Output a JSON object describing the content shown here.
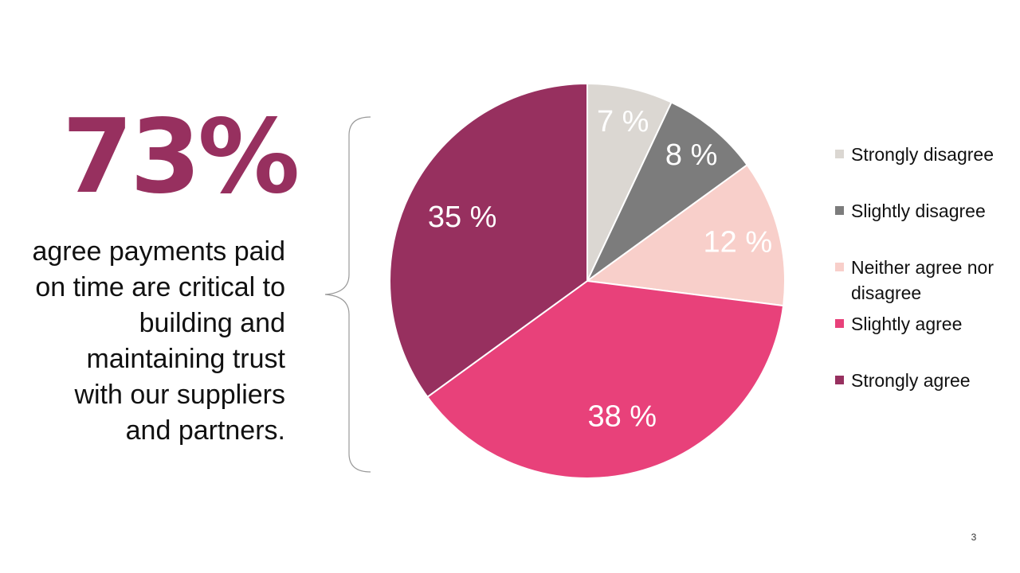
{
  "headline": {
    "stat": "73%",
    "text": "agree payments paid on time are critical to building and maintaining trust with our suppliers and partners."
  },
  "chart_data": {
    "type": "pie",
    "start_angle_deg": 0,
    "direction": "clockwise",
    "categories": [
      "Strongly disagree",
      "Slightly disagree",
      "Neither agree nor disagree",
      "Slightly agree",
      "Strongly agree"
    ],
    "values": [
      7,
      8,
      12,
      38,
      35
    ],
    "value_labels": [
      "7 %",
      "8 %",
      "12 %",
      "38 %",
      "35 %"
    ],
    "colors": [
      "#dbd7d2",
      "#7c7c7c",
      "#f8cfca",
      "#e8417a",
      "#97305f"
    ],
    "legend_position": "right"
  },
  "legend": {
    "items": [
      {
        "label": "Strongly disagree",
        "color": "#dbd7d2"
      },
      {
        "label": "Slightly disagree",
        "color": "#7c7c7c"
      },
      {
        "label": "Neither agree nor disagree",
        "color": "#f8cfca"
      },
      {
        "label": "Slightly agree",
        "color": "#e8417a"
      },
      {
        "label": "Strongly agree",
        "color": "#97305f"
      }
    ]
  },
  "footer": {
    "page_number": "3"
  },
  "colors": {
    "accent": "#97305f",
    "text": "#111111",
    "brace": "#999999"
  }
}
